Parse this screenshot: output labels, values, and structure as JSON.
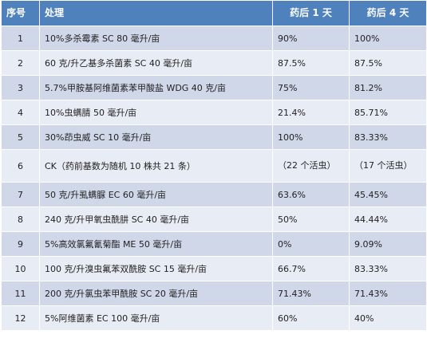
{
  "headers": [
    "序号",
    "处理",
    "药后 1 天",
    "药后 4 天"
  ],
  "rows": [
    {
      "no": "1",
      "treatment": "10%多杀霉素 SC     80 毫升/亩",
      "day1": "90%",
      "day4": "100%"
    },
    {
      "no": "2",
      "treatment": "60 克/升乙基多杀菌素 SC    40 毫升/亩",
      "day1": "87.5%",
      "day4": "87.5%"
    },
    {
      "no": "3",
      "treatment": "5.7%甲胺基阿维菌素苯甲酸盐 WDG    40 克/亩",
      "day1": "75%",
      "day4": "81.2%"
    },
    {
      "no": "4",
      "treatment": "10%虫螨腈    50 毫升/亩",
      "day1": "21.4%",
      "day4": "85.71%"
    },
    {
      "no": "5",
      "treatment": "30%茚虫威 SC    10 毫升/亩",
      "day1": "100%",
      "day4": "83.33%"
    },
    {
      "no": "6",
      "treatment": "CK（药前基数为随机 10 株共 21 条）",
      "day1": "（22 个活虫）",
      "day4": "（17 个活虫）"
    },
    {
      "no": "7",
      "treatment": "50 克/升虱螨脲 EC    60 毫升/亩",
      "day1": "63.6%",
      "day4": "45.45%"
    },
    {
      "no": "8",
      "treatment": "240 克/升甲氧虫酰肼 SC    40 毫升/亩",
      "day1": "50%",
      "day4": "44.44%"
    },
    {
      "no": "9",
      "treatment": "5%高效氯氟氰菊酯 ME    50 毫升/亩",
      "day1": "0%",
      "day4": "9.09%"
    },
    {
      "no": "10",
      "treatment": "100 克/升溴虫氟苯双酰胺 SC     15 毫升/亩",
      "day1": "66.7%",
      "day4": "83.33%"
    },
    {
      "no": "11",
      "treatment": "200 克/升氯虫苯甲酰胺 SC     20 毫升/亩",
      "day1": "71.43%",
      "day4": "71.43%"
    },
    {
      "no": "12",
      "treatment": "5%阿维菌素 EC    100 毫升/亩",
      "day1": "60%",
      "day4": "40%"
    }
  ]
}
